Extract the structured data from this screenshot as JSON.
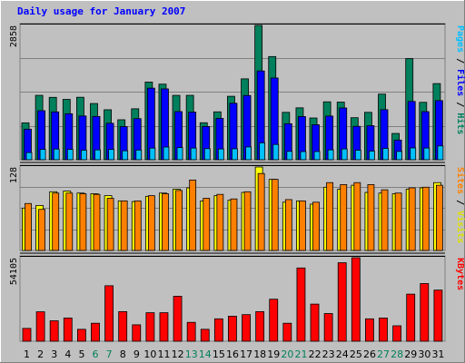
{
  "title": "Daily usage for January 2007",
  "colors": {
    "background": "#C0C0C0",
    "frame_light": "#FFFFFF",
    "frame_dark": "#808080",
    "title": "#0000FF",
    "grid": "#808080",
    "hits": "#00805C",
    "files": "#0000FF",
    "pages": "#00C0FF",
    "visits": "#FFFF00",
    "sites": "#FF8000",
    "kbytes": "#FF0000",
    "weekday_label": "#000000",
    "weekend_label": "#00805C",
    "separator": "#000000"
  },
  "chart_data": [
    {
      "type": "bar",
      "panel": "hits-files-pages",
      "ymax_label": "2858",
      "ylim": [
        0,
        2858
      ],
      "grid": true,
      "categories": [
        "1",
        "2",
        "3",
        "4",
        "5",
        "6",
        "7",
        "8",
        "9",
        "10",
        "11",
        "12",
        "13",
        "14",
        "15",
        "16",
        "17",
        "18",
        "19",
        "20",
        "21",
        "22",
        "23",
        "24",
        "25",
        "26",
        "27",
        "28",
        "29",
        "30",
        "31"
      ],
      "series": [
        {
          "name": "Hits",
          "color": "#00805C",
          "values": [
            785,
            1370,
            1327,
            1284,
            1329,
            1196,
            1063,
            850,
            1084,
            1653,
            1608,
            1369,
            1370,
            787,
            1019,
            1350,
            1721,
            2858,
            2195,
            1008,
            1104,
            888,
            1232,
            1226,
            894,
            1008,
            1396,
            559,
            2151,
            1221,
            1620
          ]
        },
        {
          "name": "Files",
          "color": "#0000FF",
          "values": [
            650,
            1043,
            1018,
            978,
            931,
            920,
            776,
            705,
            874,
            1523,
            1507,
            1024,
            1014,
            707,
            880,
            1202,
            1367,
            1889,
            1739,
            766,
            919,
            744,
            929,
            1101,
            710,
            724,
            1065,
            418,
            1240,
            1023,
            1258
          ]
        },
        {
          "name": "Pages",
          "color": "#00C0FF",
          "values": [
            153,
            220,
            227,
            221,
            203,
            210,
            219,
            190,
            206,
            247,
            270,
            259,
            248,
            236,
            229,
            233,
            272,
            359,
            325,
            179,
            174,
            175,
            210,
            229,
            202,
            184,
            241,
            177,
            251,
            249,
            294
          ]
        }
      ]
    },
    {
      "type": "bar",
      "panel": "visits-sites",
      "ymax_label": "128",
      "ylim": [
        0,
        128
      ],
      "grid": true,
      "categories": [
        "1",
        "2",
        "3",
        "4",
        "5",
        "6",
        "7",
        "8",
        "9",
        "10",
        "11",
        "12",
        "13",
        "14",
        "15",
        "16",
        "17",
        "18",
        "19",
        "20",
        "21",
        "22",
        "23",
        "24",
        "25",
        "26",
        "27",
        "28",
        "29",
        "30",
        "31"
      ],
      "series": [
        {
          "name": "Visits",
          "color": "#FFFF00",
          "values": [
            65,
            69,
            90,
            91,
            88,
            87,
            84,
            76,
            75,
            83,
            88,
            94,
            96,
            76,
            84,
            77,
            89,
            128,
            109,
            74,
            76,
            71,
            97,
            94,
            100,
            89,
            88,
            87,
            94,
            96,
            104
          ]
        },
        {
          "name": "Sites",
          "color": "#FF8000",
          "values": [
            72,
            63,
            88,
            88,
            87,
            86,
            80,
            76,
            76,
            84,
            87,
            92,
            108,
            80,
            86,
            79,
            90,
            118,
            109,
            78,
            76,
            74,
            104,
            101,
            104,
            101,
            93,
            88,
            96,
            97,
            100
          ]
        }
      ]
    },
    {
      "type": "bar",
      "panel": "kbytes",
      "ymax_label": "54105",
      "ylim": [
        0,
        54105
      ],
      "grid": false,
      "categories": [
        "1",
        "2",
        "3",
        "4",
        "5",
        "6",
        "7",
        "8",
        "9",
        "10",
        "11",
        "12",
        "13",
        "14",
        "15",
        "16",
        "17",
        "18",
        "19",
        "20",
        "21",
        "22",
        "23",
        "24",
        "25",
        "26",
        "27",
        "28",
        "29",
        "30",
        "31"
      ],
      "series": [
        {
          "name": "KBytes",
          "color": "#FF0000",
          "values": [
            8310,
            19061,
            13237,
            15023,
            7713,
            11653,
            35945,
            19180,
            10637,
            18478,
            18478,
            29137,
            12227,
            7713,
            14508,
            16230,
            17237,
            19180,
            27223,
            11653,
            47460,
            24043,
            17944,
            50868,
            54105,
            14508,
            15023,
            9995,
            30509,
            37359,
            33136
          ]
        }
      ]
    }
  ],
  "day_labels": [
    "1",
    "2",
    "3",
    "4",
    "5",
    "6",
    "7",
    "8",
    "9",
    "10",
    "11",
    "12",
    "13",
    "14",
    "15",
    "16",
    "17",
    "18",
    "19",
    "20",
    "21",
    "22",
    "23",
    "24",
    "25",
    "26",
    "27",
    "28",
    "29",
    "30",
    "31"
  ],
  "weekend_days": [
    "6",
    "7",
    "13",
    "14",
    "20",
    "21",
    "27",
    "28"
  ],
  "side_labels": {
    "top": [
      {
        "text": "Pages",
        "color": "#00C0FF"
      },
      {
        "text": " / ",
        "color": "#000000"
      },
      {
        "text": "Files",
        "color": "#0000FF"
      },
      {
        "text": " / ",
        "color": "#000000"
      },
      {
        "text": "Hits",
        "color": "#00805C"
      }
    ],
    "middle": [
      {
        "text": "Sites",
        "color": "#FF8000"
      },
      {
        "text": " / ",
        "color": "#000000"
      },
      {
        "text": "Visits",
        "color": "#E0E000"
      }
    ],
    "bottom": [
      {
        "text": "KBytes",
        "color": "#FF0000"
      }
    ]
  }
}
